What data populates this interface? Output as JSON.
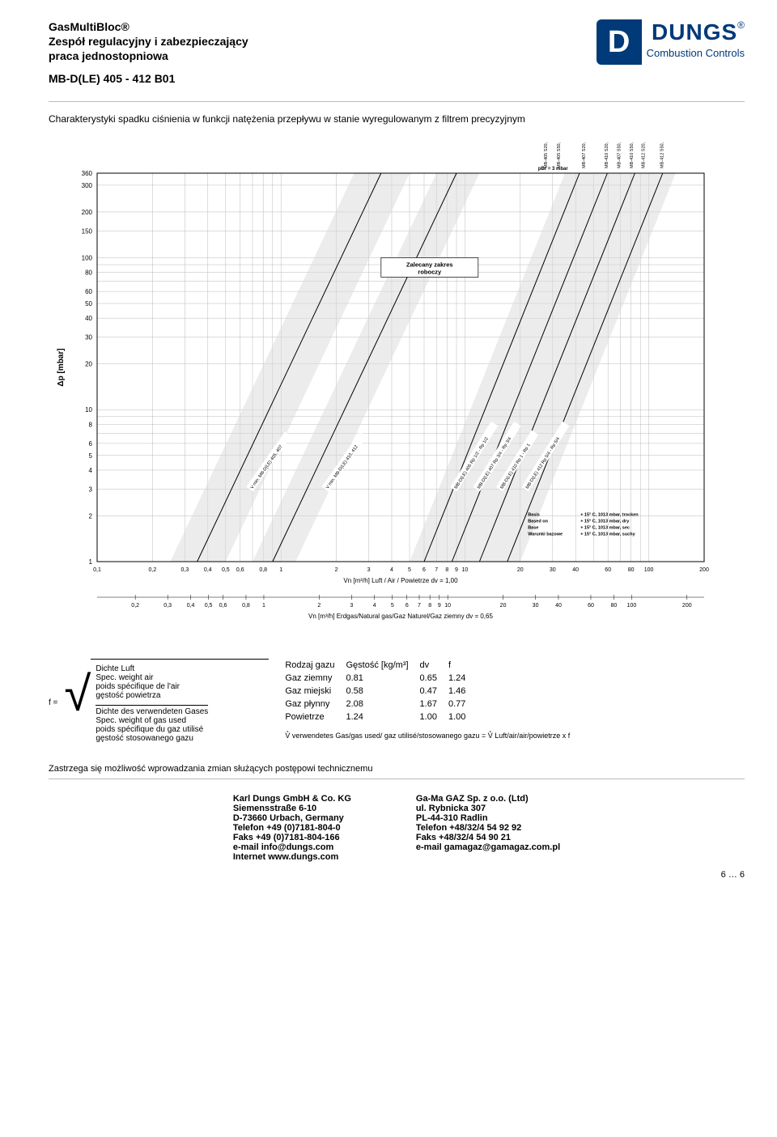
{
  "header": {
    "line1": "GasMultiBloc®",
    "line2": "Zespół regulacyjny i zabezpieczający",
    "line3": "praca jednostopniowa",
    "model": "MB-D(LE) 405 - 412 B01"
  },
  "logo": {
    "brand": "DUNGS",
    "tagline": "Combustion Controls"
  },
  "chart": {
    "title": "Charakterystyki spadku ciśnienia w funkcji natężenia przepływu w stanie wyregulowanym z filtrem precyzyjnym",
    "ylabel": "Δp [mbar]",
    "yticks": [
      1,
      2,
      3,
      4,
      5,
      6,
      8,
      10,
      20,
      30,
      40,
      50,
      60,
      80,
      100,
      150,
      200,
      300,
      360
    ],
    "xlabel_air": "Vn [m³/h] Luft / Air / Powietrze dv = 1,00",
    "xlabel_gas": "Vn [m³/h] Erdgas/Natural gas/Gaz Naturel/Gaz ziemny dv = 0,65",
    "xticks_air": [
      "0,1",
      "0,2",
      "0,3",
      "0,4",
      "0,5",
      "0,6",
      "0,8",
      "1",
      "2",
      "3",
      "4",
      "5",
      "6",
      "7",
      "8",
      "9",
      "10",
      "20",
      "30",
      "40",
      "60",
      "80",
      "100",
      "200"
    ],
    "xticks_gas": [
      "0,2",
      "0,3",
      "0,4",
      "0,5",
      "0,6",
      "0,8",
      "1",
      "2",
      "3",
      "4",
      "5",
      "6",
      "7",
      "8",
      "9",
      "10",
      "20",
      "30",
      "40",
      "60",
      "80",
      "100",
      "200"
    ],
    "recommended_label": "Zalecany zakres roboczy",
    "pbr_label": "pBr = 3 mbar",
    "top_labels": [
      "MB-405 S20, S22",
      "MB-405 S50, S52",
      "MB-407 S20, S22",
      "MB-410 S20, S22",
      "MB-407 S50, S52",
      "MB-410 S50, S52",
      "MB-412 S20, S22",
      "MB-412 S50, S52"
    ],
    "curve_labels": [
      "V min. MB-D(LE) 405, 407",
      "V min. MB-D(LE) 410, 412",
      "MB-D(LE) 405 Rp 1/2 - Rp 1/2",
      "MB-D(LE) 407 Rp 3/4 - Rp 3/4",
      "MB-D(LE) 410 Rp 1 - Rp 1",
      "MB-D(LE) 412 Rp 5/4 - Rp 5/4"
    ],
    "basis_lines": [
      [
        "Basis",
        "+ 15° C, 1013 mbar, trocken"
      ],
      [
        "Based on",
        "+ 15° C, 1013 mbar, dry"
      ],
      [
        "Base",
        "+ 15° C, 1013 mbar, sec"
      ],
      [
        "Warunki bazowe",
        "+ 15° C, 1013 mbar, suchy"
      ]
    ],
    "grid_color": "#b9b9b9",
    "band_fill": "#d9d9d9",
    "line_color": "#000000",
    "background": "#ffffff"
  },
  "formula": {
    "f_eq": "f =",
    "num1": "Dichte Luft",
    "num2": "Spec. weight air",
    "num3": "poids spécifique de l'air",
    "num4": "gęstość powietrza",
    "den1": "Dichte des verwendeten Gases",
    "den2": "Spec. weight of gas used",
    "den3": "poids spécifique du gaz utilisé",
    "den4": "gęstość stosowanego gazu"
  },
  "gas_table": {
    "headers": [
      "Rodzaj gazu",
      "Gęstość [kg/m³]",
      "dv",
      "f"
    ],
    "rows": [
      [
        "Gaz ziemny",
        "0.81",
        "0.65",
        "1.24"
      ],
      [
        "Gaz miejski",
        "0.58",
        "0.47",
        "1.46"
      ],
      [
        "Gaz płynny",
        "2.08",
        "1.67",
        "0.77"
      ],
      [
        "Powietrze",
        "1.24",
        "1.00",
        "1.00"
      ]
    ],
    "v_equation": "V̊ verwendetes Gas/gas used/ gaz utilisé/stosowanego gazu  =  V̊ Luft/air/air/powietrze  x  f"
  },
  "disclaimer": "Zastrzega się możliwość wprowadzania zmian służących postępowi technicznemu",
  "footer": {
    "left": [
      "Karl Dungs GmbH & Co. KG",
      "Siemensstraße 6-10",
      "D-73660 Urbach, Germany",
      "Telefon +49 (0)7181-804-0",
      "Faks +49 (0)7181-804-166",
      "e-mail info@dungs.com",
      "Internet www.dungs.com"
    ],
    "right": [
      "Ga-Ma GAZ Sp. z o.o. (Ltd)",
      "ul. Rybnicka 307",
      "PL-44-310 Radlin",
      "Telefon +48/32/4 54 92 92",
      "Faks +48/32/4 54 90 21",
      "e-mail gamagaz@gamagaz.com.pl"
    ]
  },
  "pager": "6 … 6"
}
